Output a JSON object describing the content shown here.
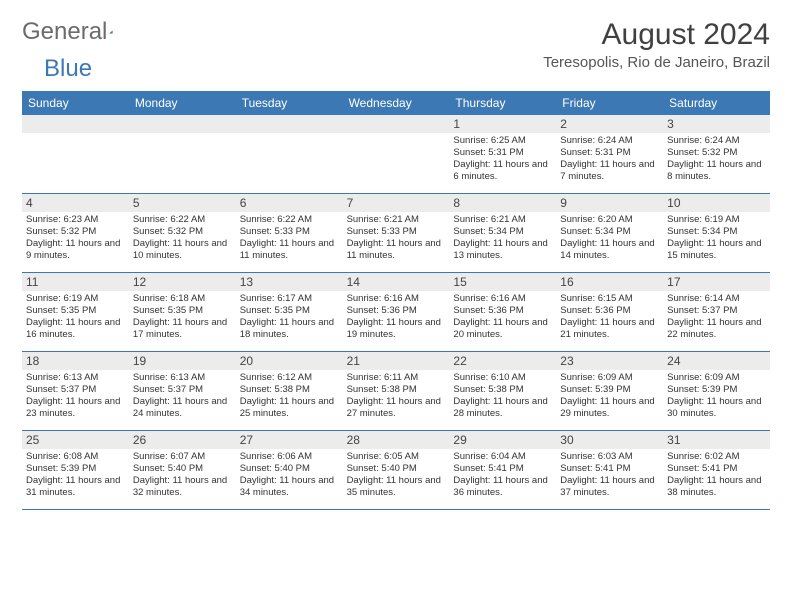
{
  "logo": {
    "part1": "General",
    "part2": "Blue"
  },
  "title": "August 2024",
  "location": "Teresopolis, Rio de Janeiro, Brazil",
  "colors": {
    "header_bg": "#3c78b4",
    "header_text": "#ffffff",
    "daynum_bg": "#ececec",
    "border": "#3c78b4"
  },
  "days_of_week": [
    "Sunday",
    "Monday",
    "Tuesday",
    "Wednesday",
    "Thursday",
    "Friday",
    "Saturday"
  ],
  "weeks": [
    [
      null,
      null,
      null,
      null,
      {
        "n": "1",
        "sunrise": "6:25 AM",
        "sunset": "5:31 PM",
        "dl": "11 hours and 6 minutes."
      },
      {
        "n": "2",
        "sunrise": "6:24 AM",
        "sunset": "5:31 PM",
        "dl": "11 hours and 7 minutes."
      },
      {
        "n": "3",
        "sunrise": "6:24 AM",
        "sunset": "5:32 PM",
        "dl": "11 hours and 8 minutes."
      }
    ],
    [
      {
        "n": "4",
        "sunrise": "6:23 AM",
        "sunset": "5:32 PM",
        "dl": "11 hours and 9 minutes."
      },
      {
        "n": "5",
        "sunrise": "6:22 AM",
        "sunset": "5:32 PM",
        "dl": "11 hours and 10 minutes."
      },
      {
        "n": "6",
        "sunrise": "6:22 AM",
        "sunset": "5:33 PM",
        "dl": "11 hours and 11 minutes."
      },
      {
        "n": "7",
        "sunrise": "6:21 AM",
        "sunset": "5:33 PM",
        "dl": "11 hours and 11 minutes."
      },
      {
        "n": "8",
        "sunrise": "6:21 AM",
        "sunset": "5:34 PM",
        "dl": "11 hours and 13 minutes."
      },
      {
        "n": "9",
        "sunrise": "6:20 AM",
        "sunset": "5:34 PM",
        "dl": "11 hours and 14 minutes."
      },
      {
        "n": "10",
        "sunrise": "6:19 AM",
        "sunset": "5:34 PM",
        "dl": "11 hours and 15 minutes."
      }
    ],
    [
      {
        "n": "11",
        "sunrise": "6:19 AM",
        "sunset": "5:35 PM",
        "dl": "11 hours and 16 minutes."
      },
      {
        "n": "12",
        "sunrise": "6:18 AM",
        "sunset": "5:35 PM",
        "dl": "11 hours and 17 minutes."
      },
      {
        "n": "13",
        "sunrise": "6:17 AM",
        "sunset": "5:35 PM",
        "dl": "11 hours and 18 minutes."
      },
      {
        "n": "14",
        "sunrise": "6:16 AM",
        "sunset": "5:36 PM",
        "dl": "11 hours and 19 minutes."
      },
      {
        "n": "15",
        "sunrise": "6:16 AM",
        "sunset": "5:36 PM",
        "dl": "11 hours and 20 minutes."
      },
      {
        "n": "16",
        "sunrise": "6:15 AM",
        "sunset": "5:36 PM",
        "dl": "11 hours and 21 minutes."
      },
      {
        "n": "17",
        "sunrise": "6:14 AM",
        "sunset": "5:37 PM",
        "dl": "11 hours and 22 minutes."
      }
    ],
    [
      {
        "n": "18",
        "sunrise": "6:13 AM",
        "sunset": "5:37 PM",
        "dl": "11 hours and 23 minutes."
      },
      {
        "n": "19",
        "sunrise": "6:13 AM",
        "sunset": "5:37 PM",
        "dl": "11 hours and 24 minutes."
      },
      {
        "n": "20",
        "sunrise": "6:12 AM",
        "sunset": "5:38 PM",
        "dl": "11 hours and 25 minutes."
      },
      {
        "n": "21",
        "sunrise": "6:11 AM",
        "sunset": "5:38 PM",
        "dl": "11 hours and 27 minutes."
      },
      {
        "n": "22",
        "sunrise": "6:10 AM",
        "sunset": "5:38 PM",
        "dl": "11 hours and 28 minutes."
      },
      {
        "n": "23",
        "sunrise": "6:09 AM",
        "sunset": "5:39 PM",
        "dl": "11 hours and 29 minutes."
      },
      {
        "n": "24",
        "sunrise": "6:09 AM",
        "sunset": "5:39 PM",
        "dl": "11 hours and 30 minutes."
      }
    ],
    [
      {
        "n": "25",
        "sunrise": "6:08 AM",
        "sunset": "5:39 PM",
        "dl": "11 hours and 31 minutes."
      },
      {
        "n": "26",
        "sunrise": "6:07 AM",
        "sunset": "5:40 PM",
        "dl": "11 hours and 32 minutes."
      },
      {
        "n": "27",
        "sunrise": "6:06 AM",
        "sunset": "5:40 PM",
        "dl": "11 hours and 34 minutes."
      },
      {
        "n": "28",
        "sunrise": "6:05 AM",
        "sunset": "5:40 PM",
        "dl": "11 hours and 35 minutes."
      },
      {
        "n": "29",
        "sunrise": "6:04 AM",
        "sunset": "5:41 PM",
        "dl": "11 hours and 36 minutes."
      },
      {
        "n": "30",
        "sunrise": "6:03 AM",
        "sunset": "5:41 PM",
        "dl": "11 hours and 37 minutes."
      },
      {
        "n": "31",
        "sunrise": "6:02 AM",
        "sunset": "5:41 PM",
        "dl": "11 hours and 38 minutes."
      }
    ]
  ],
  "labels": {
    "sunrise": "Sunrise: ",
    "sunset": "Sunset: ",
    "daylight": "Daylight: "
  }
}
